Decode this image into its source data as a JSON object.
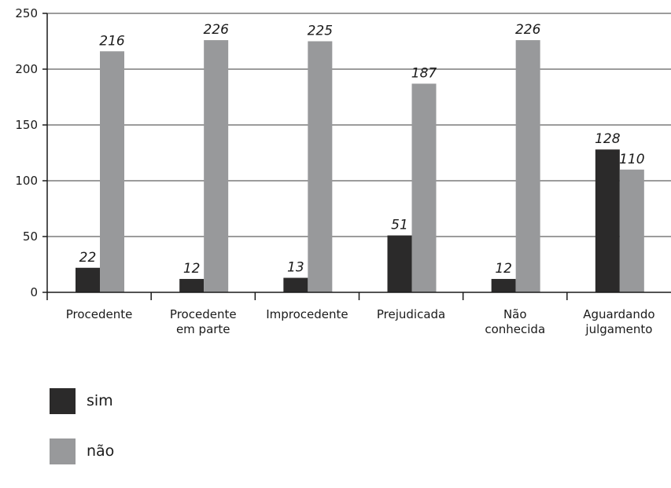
{
  "chart_data": {
    "type": "bar",
    "categories": [
      [
        "Procedente"
      ],
      [
        "Procedente",
        "em parte"
      ],
      [
        "Improcedente"
      ],
      [
        "Prejudicada"
      ],
      [
        "Não",
        "conhecida"
      ],
      [
        "Aguardando",
        "julgamento"
      ]
    ],
    "series": [
      {
        "name": "sim",
        "color": "#2b2a2a",
        "values": [
          22,
          12,
          13,
          51,
          12,
          128
        ]
      },
      {
        "name": "não",
        "color": "#98999b",
        "values": [
          216,
          226,
          225,
          187,
          226,
          110
        ]
      }
    ],
    "ylim": [
      0,
      250
    ],
    "yticks": [
      0,
      50,
      100,
      150,
      200,
      250
    ],
    "grid": true,
    "legend_position": "bottom-left"
  }
}
